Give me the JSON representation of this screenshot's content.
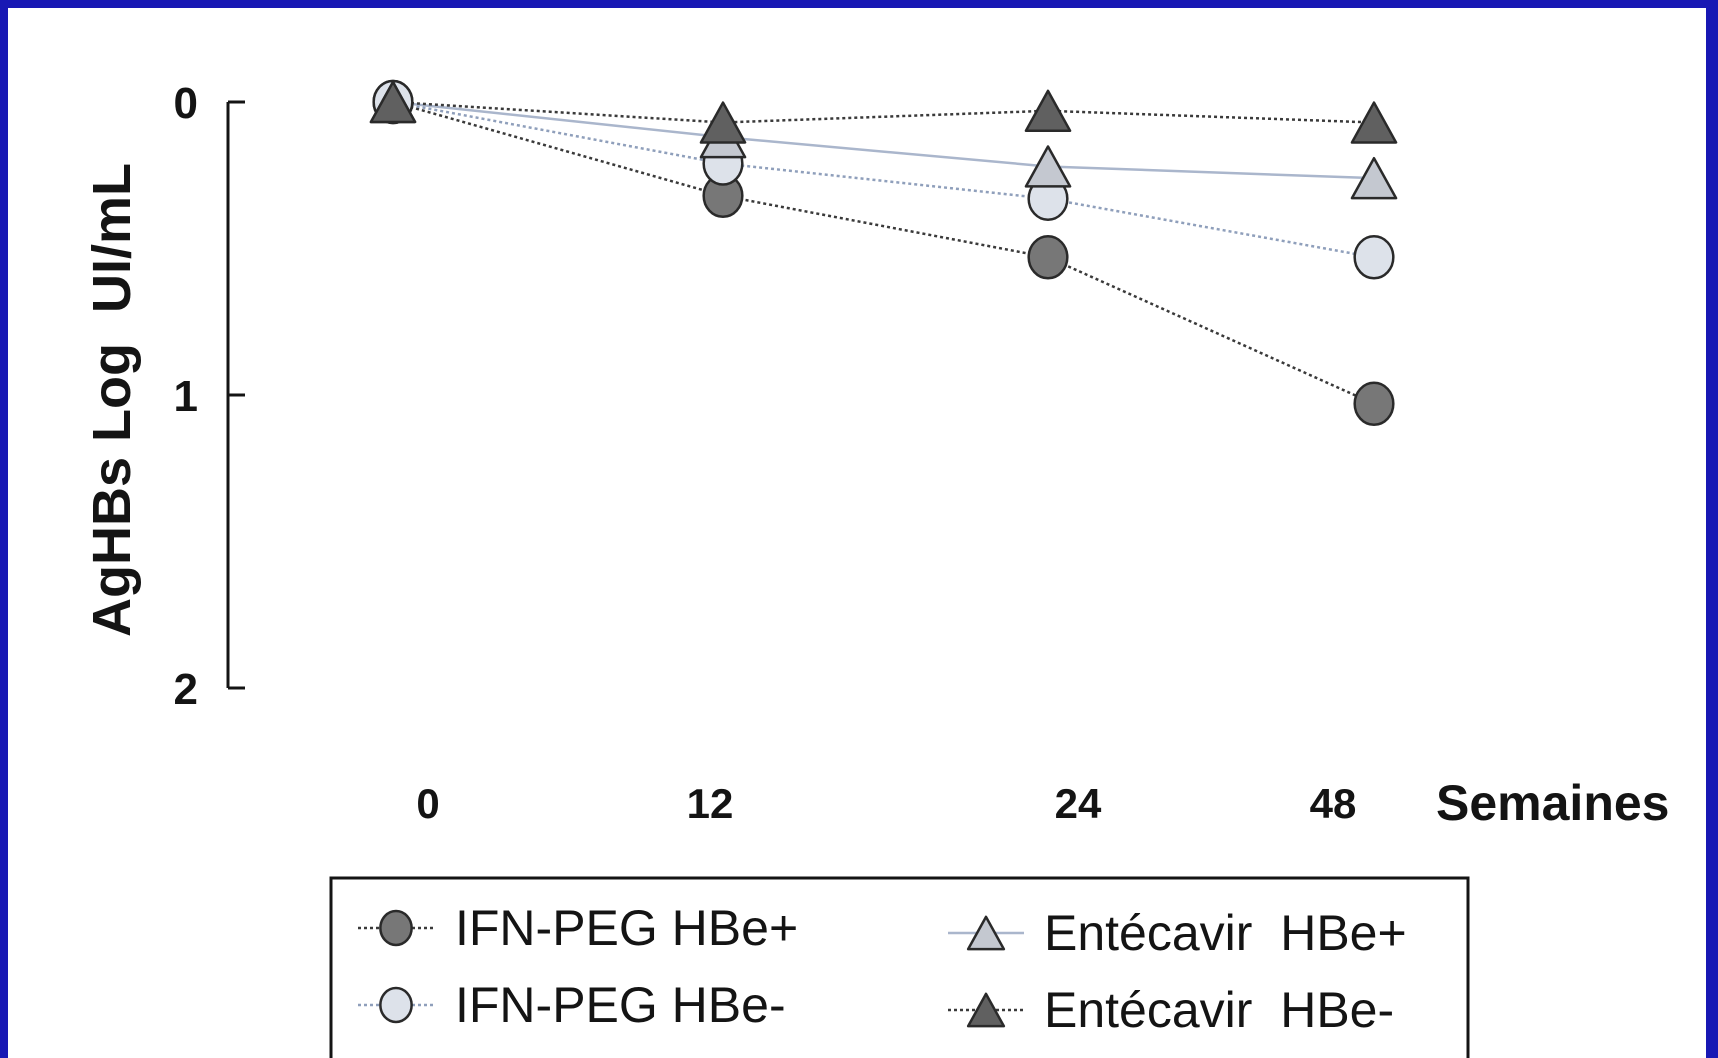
{
  "chart_data": {
    "type": "line",
    "ylabel": "AgHBs Log  UI/mL",
    "xlabel": "Semaines",
    "x": [
      0,
      12,
      24,
      48
    ],
    "x_tick_labels": [
      "0",
      "12",
      "24",
      "48"
    ],
    "y_tick_labels": [
      "0",
      "1",
      "2"
    ],
    "ylim": [
      0,
      2
    ],
    "y_inverted": true,
    "legend_position": "bottom",
    "series": [
      {
        "name": "IFN-PEG HBe+",
        "marker": "circle",
        "fill": "#777777",
        "line": "dotted",
        "values": [
          0,
          0.32,
          0.53,
          1.03
        ]
      },
      {
        "name": "IFN-PEG HBe-",
        "marker": "circle",
        "fill": "#dde2ea",
        "line": "dotted-light",
        "values": [
          0,
          0.21,
          0.33,
          0.53
        ]
      },
      {
        "name": "Entécavir  HBe+",
        "marker": "triangle",
        "fill": "#c4c8d0",
        "line": "solid-light",
        "values": [
          0,
          0.12,
          0.22,
          0.26
        ]
      },
      {
        "name": "Entécavir  HBe-",
        "marker": "triangle",
        "fill": "#606060",
        "line": "dotted",
        "values": [
          0,
          0.07,
          0.03,
          0.07
        ]
      }
    ]
  },
  "colors": {
    "frame": "#1818b4",
    "background": "#ffffff",
    "ink": "#141414"
  }
}
